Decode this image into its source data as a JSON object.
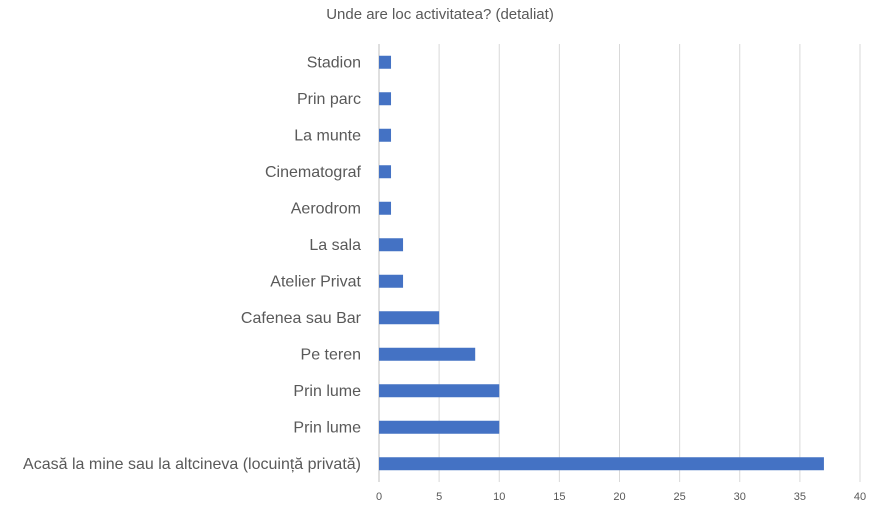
{
  "chart_data": {
    "type": "bar",
    "orientation": "horizontal",
    "title": "Unde are loc activitatea? (detaliat)",
    "categories": [
      "Stadion",
      "Prin parc",
      "La munte",
      "Cinematograf",
      "Aerodrom",
      "La sala",
      "Atelier Privat",
      "Cafenea sau Bar",
      "Pe teren",
      "Prin lume",
      "Prin lume",
      "Acasă la mine sau la altcineva (locuință privată)"
    ],
    "values": [
      1,
      1,
      1,
      1,
      1,
      2,
      2,
      5,
      8,
      10,
      10,
      37
    ],
    "xlim": [
      0,
      40
    ],
    "xticks": [
      0,
      5,
      10,
      15,
      20,
      25,
      30,
      35,
      40
    ],
    "xlabel": "",
    "ylabel": "",
    "grid": "vertical",
    "legend": "none",
    "bar_color": "#4472c4"
  }
}
